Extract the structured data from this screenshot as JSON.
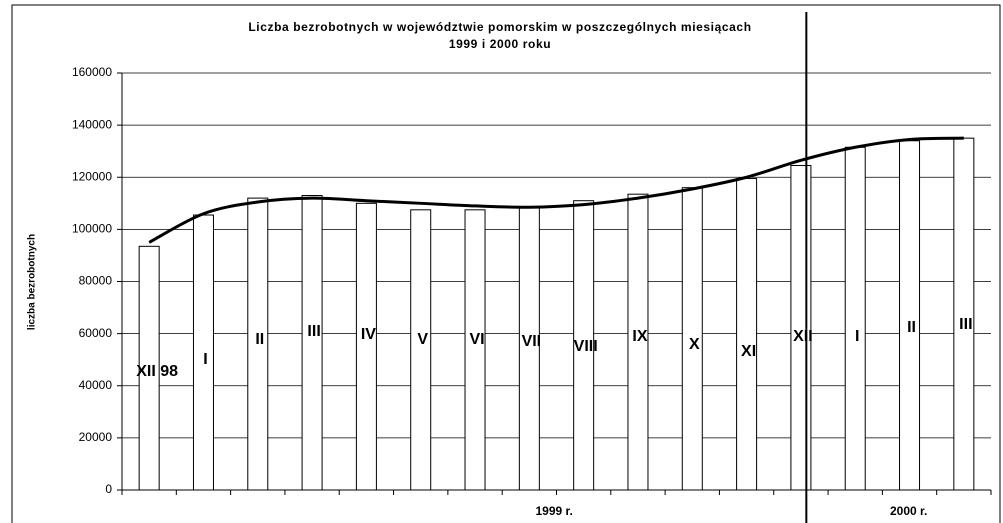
{
  "chart_data": {
    "type": "bar",
    "title": "Liczba bezrobotnych w województwie pomorskim w poszczególnych miesiącach",
    "subtitle": "1999 i 2000 roku",
    "y_label": "liczba bezrobotnych",
    "categories": [
      "XII 98",
      "I",
      "II",
      "III",
      "IV",
      "V",
      "VI",
      "VII",
      "VIII",
      "IX",
      "X",
      "XI",
      "XII",
      "I",
      "II",
      "III"
    ],
    "values": [
      93500,
      105500,
      112000,
      113000,
      110000,
      107500,
      107500,
      108500,
      111000,
      113500,
      116000,
      119500,
      124500,
      131500,
      134000,
      135000
    ],
    "trend": [
      95000,
      106000,
      110500,
      112000,
      111000,
      110000,
      109000,
      108500,
      109500,
      112000,
      115500,
      120000,
      126500,
      131500,
      134500,
      135000
    ],
    "group_labels": [
      "1999 r.",
      "2000 r."
    ],
    "color": "#ffffff",
    "ylim": [
      0,
      160000
    ],
    "yticks": [
      0,
      20000,
      40000,
      60000,
      80000,
      100000,
      120000,
      140000,
      160000
    ],
    "grid": true
  }
}
